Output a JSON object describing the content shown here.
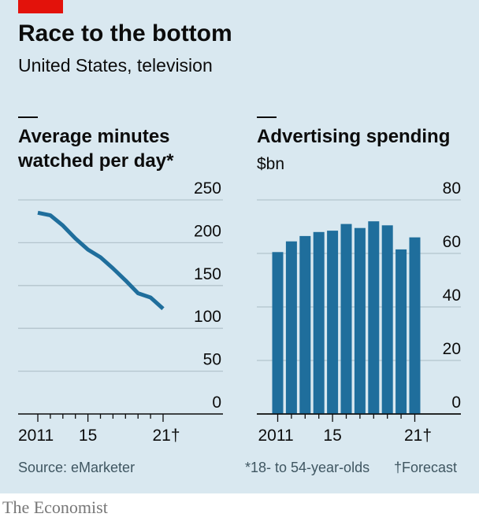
{
  "header": {
    "title": "Race to the bottom",
    "subtitle": "United States, television"
  },
  "colors": {
    "accent": "#e3120b",
    "series": "#1f6e9c",
    "background": "#d9e8f0",
    "grid": "#b3c4cd"
  },
  "chart_data": [
    {
      "type": "line",
      "title": "Average minutes watched per day*",
      "x": [
        2011,
        2012,
        2013,
        2014,
        2015,
        2016,
        2017,
        2018,
        2019,
        2020,
        2021
      ],
      "series": [
        {
          "values": [
            235,
            232,
            220,
            205,
            192,
            183,
            170,
            156,
            141,
            136,
            123
          ]
        }
      ],
      "ylim": [
        0,
        250
      ],
      "yticks": [
        0,
        50,
        100,
        150,
        200,
        250
      ],
      "xtick_labels": [
        "2011",
        "15",
        "21†"
      ],
      "grid": true
    },
    {
      "type": "bar",
      "title": "Advertising spending",
      "ylabel": "$bn",
      "categories": [
        2011,
        2012,
        2013,
        2014,
        2015,
        2016,
        2017,
        2018,
        2019,
        2020,
        2021
      ],
      "values": [
        60.5,
        64.5,
        66.5,
        68,
        68.5,
        71,
        69.5,
        72,
        70.5,
        61.5,
        66
      ],
      "ylim": [
        0,
        80
      ],
      "yticks": [
        0,
        20,
        40,
        60,
        80
      ],
      "xtick_labels": [
        "2011",
        "15",
        "21†"
      ],
      "grid": true
    }
  ],
  "footnotes": {
    "source": "Source: eMarketer",
    "age_note": "*18- to 54-year-olds",
    "forecast_note": "†Forecast"
  },
  "brand": "The Economist"
}
